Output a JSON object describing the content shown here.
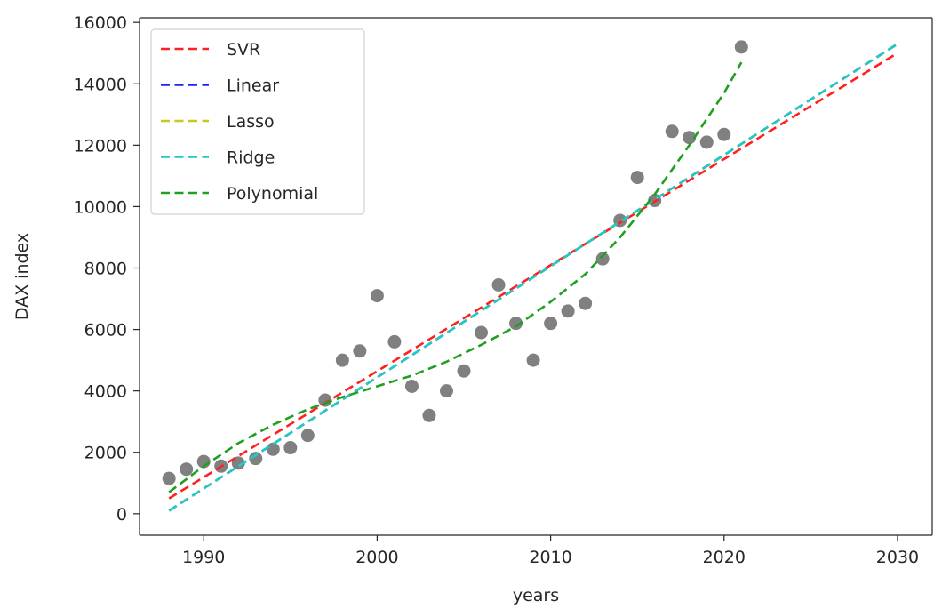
{
  "chart_data": {
    "type": "scatter",
    "xlabel": "years",
    "ylabel": "DAX index",
    "xlim": [
      1986.3,
      2032.0
    ],
    "ylim": [
      -700,
      16150
    ],
    "xticks": [
      1990,
      2000,
      2010,
      2020,
      2030
    ],
    "yticks": [
      0,
      2000,
      4000,
      6000,
      8000,
      10000,
      12000,
      14000,
      16000
    ],
    "grid": false,
    "legend_position": "top-left",
    "scatter": {
      "color": "#808080",
      "x": [
        1988,
        1989,
        1990,
        1991,
        1992,
        1993,
        1994,
        1995,
        1996,
        1997,
        1998,
        1999,
        2000,
        2001,
        2002,
        2003,
        2004,
        2005,
        2006,
        2007,
        2008,
        2009,
        2010,
        2011,
        2012,
        2013,
        2014,
        2015,
        2016,
        2017,
        2018,
        2019,
        2020,
        2021
      ],
      "y": [
        1150,
        1450,
        1700,
        1550,
        1650,
        1800,
        2100,
        2150,
        2550,
        3700,
        5000,
        5300,
        7100,
        5600,
        4150,
        3200,
        4000,
        4650,
        5900,
        7450,
        6200,
        5000,
        6200,
        6600,
        6850,
        8300,
        9550,
        10950,
        10200,
        12450,
        12250,
        12100,
        12350,
        15200
      ]
    },
    "series": [
      {
        "name": "SVR",
        "color": "#ff2020",
        "x": [
          1988,
          2030
        ],
        "y": [
          500,
          15000
        ]
      },
      {
        "name": "Linear",
        "color": "#2020ff",
        "x": [
          1988,
          2030
        ],
        "y": [
          100,
          15300
        ]
      },
      {
        "name": "Lasso",
        "color": "#c8c820",
        "x": [
          1988,
          2030
        ],
        "y": [
          100,
          15300
        ]
      },
      {
        "name": "Ridge",
        "color": "#20c8c8",
        "x": [
          1988,
          2030
        ],
        "y": [
          100,
          15300
        ]
      },
      {
        "name": "Polynomial",
        "color": "#20a020",
        "x": [
          1988,
          1990,
          1992,
          1994,
          1996,
          1998,
          2000,
          2002,
          2004,
          2006,
          2008,
          2010,
          2012,
          2014,
          2016,
          2018,
          2020,
          2021
        ],
        "y": [
          700,
          1550,
          2300,
          2900,
          3400,
          3800,
          4150,
          4500,
          4950,
          5500,
          6100,
          6900,
          7800,
          9000,
          10400,
          12000,
          13700,
          14700
        ]
      }
    ]
  }
}
